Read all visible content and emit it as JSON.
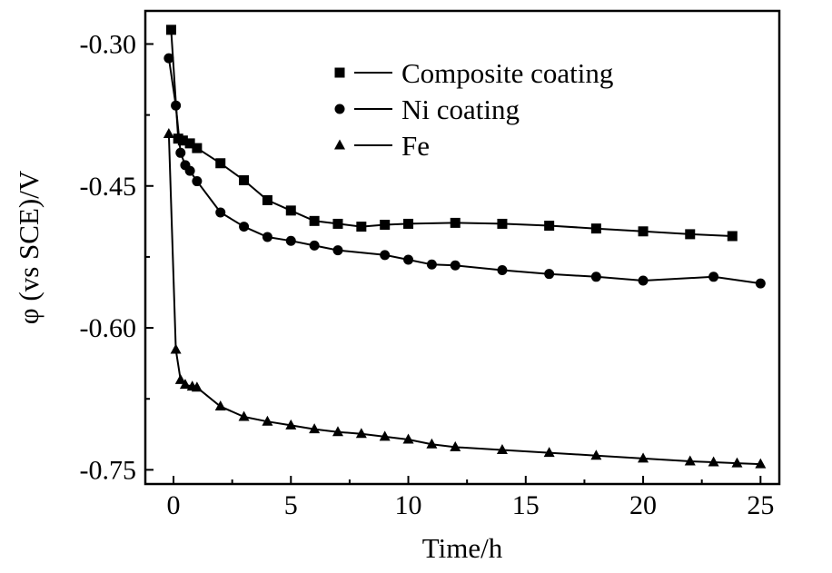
{
  "chart_data": {
    "type": "line",
    "title": "",
    "xlabel": "Time/h",
    "ylabel": "φ (vs SCE)/V",
    "xlim": [
      -1.2,
      25.8
    ],
    "ylim": [
      -0.765,
      -0.265
    ],
    "xticks": [
      0,
      5,
      10,
      15,
      20,
      25
    ],
    "yticks": [
      -0.3,
      -0.45,
      -0.6,
      -0.75
    ],
    "xtick_labels": [
      "0",
      "5",
      "10",
      "15",
      "20",
      "25"
    ],
    "ytick_labels": [
      "-0.30",
      "-0.45",
      "-0.60",
      "-0.75"
    ],
    "grid": false,
    "legend_position": "top-right",
    "series": [
      {
        "name": "Composite coating",
        "marker": "square",
        "x": [
          -0.1,
          0.2,
          0.4,
          0.7,
          1.0,
          2.0,
          3.0,
          4.0,
          5.0,
          6.0,
          7.0,
          8.0,
          9.0,
          10.0,
          12.0,
          14.0,
          16.0,
          18.0,
          20.0,
          22.0,
          23.8
        ],
        "y": [
          -0.285,
          -0.4,
          -0.402,
          -0.405,
          -0.41,
          -0.426,
          -0.444,
          -0.465,
          -0.476,
          -0.487,
          -0.49,
          -0.493,
          -0.491,
          -0.49,
          -0.489,
          -0.49,
          -0.492,
          -0.495,
          -0.498,
          -0.501,
          -0.503
        ]
      },
      {
        "name": "Ni coating",
        "marker": "circle",
        "x": [
          -0.2,
          0.1,
          0.3,
          0.5,
          0.7,
          1.0,
          2.0,
          3.0,
          4.0,
          5.0,
          6.0,
          7.0,
          9.0,
          10.0,
          11.0,
          12.0,
          14.0,
          16.0,
          18.0,
          20.0,
          23.0,
          25.0
        ],
        "y": [
          -0.315,
          -0.365,
          -0.415,
          -0.428,
          -0.434,
          -0.445,
          -0.478,
          -0.493,
          -0.504,
          -0.508,
          -0.513,
          -0.518,
          -0.523,
          -0.528,
          -0.533,
          -0.534,
          -0.539,
          -0.543,
          -0.546,
          -0.55,
          -0.546,
          -0.553
        ]
      },
      {
        "name": "Fe",
        "marker": "triangle",
        "x": [
          -0.2,
          0.1,
          0.3,
          0.5,
          0.8,
          1.0,
          2.0,
          3.0,
          4.0,
          5.0,
          6.0,
          7.0,
          8.0,
          9.0,
          10.0,
          11.0,
          12.0,
          14.0,
          16.0,
          18.0,
          20.0,
          22.0,
          23.0,
          24.0,
          25.0
        ],
        "y": [
          -0.395,
          -0.623,
          -0.655,
          -0.66,
          -0.662,
          -0.663,
          -0.683,
          -0.694,
          -0.699,
          -0.703,
          -0.707,
          -0.71,
          -0.712,
          -0.715,
          -0.718,
          -0.723,
          -0.726,
          -0.729,
          -0.732,
          -0.735,
          -0.738,
          -0.741,
          -0.742,
          -0.743,
          -0.744
        ]
      }
    ]
  }
}
